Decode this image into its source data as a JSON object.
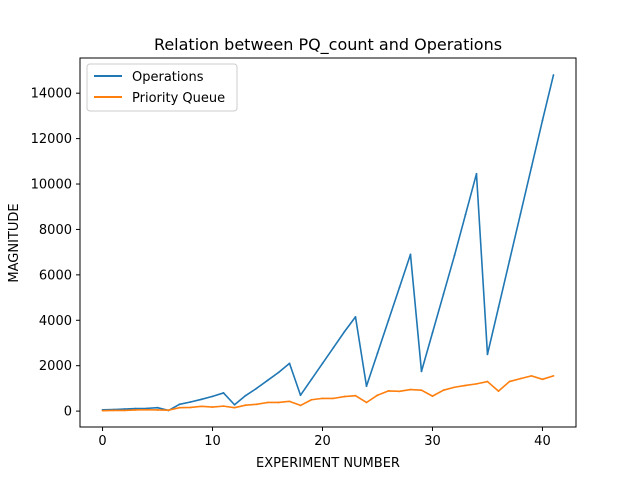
{
  "chart_data": {
    "type": "line",
    "title": "Relation between PQ_count and Operations",
    "xlabel": "EXPERIMENT NUMBER",
    "ylabel": "MAGNITUDE",
    "xlim": [
      -2.05,
      43.05
    ],
    "ylim": [
      -700,
      15550
    ],
    "xticks": [
      0,
      10,
      20,
      30,
      40
    ],
    "yticks": [
      0,
      2000,
      4000,
      6000,
      8000,
      10000,
      12000,
      14000
    ],
    "grid": false,
    "legend_position": "top-left",
    "x": [
      0,
      1,
      2,
      3,
      4,
      5,
      6,
      7,
      8,
      9,
      10,
      11,
      12,
      13,
      14,
      15,
      16,
      17,
      18,
      19,
      20,
      21,
      22,
      23,
      24,
      25,
      26,
      27,
      28,
      29,
      30,
      31,
      32,
      33,
      34,
      35,
      36,
      37,
      38,
      39,
      40,
      41
    ],
    "series": [
      {
        "name": "Operations",
        "color": "#1f77b4",
        "values": [
          60,
          70,
          90,
          110,
          120,
          150,
          30,
          300,
          400,
          520,
          650,
          800,
          280,
          680,
          1000,
          1350,
          1700,
          2100,
          700,
          1400,
          2100,
          2800,
          3500,
          4150,
          1100,
          2550,
          4000,
          5450,
          6900,
          1750,
          3450,
          5150,
          6850,
          8650,
          10450,
          2500,
          4560,
          6620,
          8680,
          10740,
          12800,
          14800
        ]
      },
      {
        "name": "Priority Queue",
        "color": "#ff7f0e",
        "values": [
          20,
          30,
          30,
          50,
          60,
          50,
          40,
          150,
          160,
          210,
          180,
          220,
          150,
          260,
          300,
          380,
          380,
          430,
          250,
          500,
          560,
          560,
          640,
          680,
          380,
          700,
          890,
          870,
          950,
          920,
          660,
          920,
          1050,
          1130,
          1200,
          1300,
          880,
          1300,
          1430,
          1550,
          1400,
          1550
        ]
      }
    ]
  }
}
